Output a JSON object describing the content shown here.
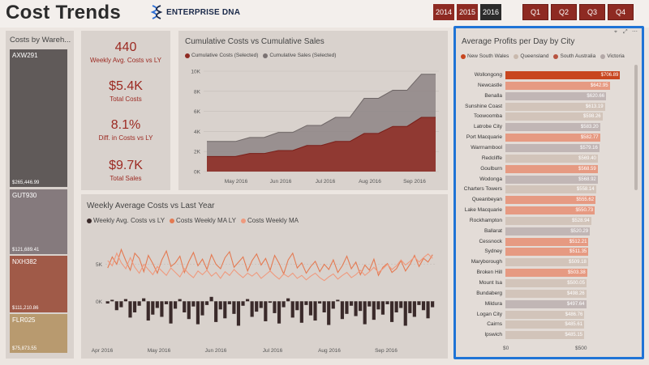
{
  "header": {
    "title": "Cost Trends",
    "logo_text": "ENTERPRISE DNA",
    "years": [
      "2014",
      "2015",
      "2016"
    ],
    "active_year": "2016",
    "quarters": [
      "Q1",
      "Q2",
      "Q3",
      "Q4"
    ]
  },
  "colors": {
    "accent": "#9c2a22",
    "frame": "#1f74d6",
    "nsw": "#c8461f",
    "qld": "#c9b9ad",
    "sa": "#b7533f",
    "vic": "#b3a8a7"
  },
  "treemap": {
    "title": "Costs by Wareh...",
    "items": [
      {
        "name": "AXW291",
        "value": "$265,446.99",
        "color": "#605a59"
      },
      {
        "name": "GUT930",
        "value": "$121,689.41",
        "color": "#857a7d"
      },
      {
        "name": "NXH382",
        "value": "$111,210.86",
        "color": "#a05a48"
      },
      {
        "name": "FLR025",
        "value": "$75,873.55",
        "color": "#b89a6f"
      }
    ]
  },
  "kpis": [
    {
      "value": "440",
      "label": "Weekly Avg. Costs vs LY"
    },
    {
      "value": "$5.4K",
      "label": "Total Costs"
    },
    {
      "value": "8.1%",
      "label": "Diff. in Costs vs LY"
    },
    {
      "value": "$9.7K",
      "label": "Total Sales"
    }
  ],
  "cumulative": {
    "title": "Cumulative Costs vs Cumulative Sales",
    "legend": [
      "Cumulative Costs (Selected)",
      "Cumulative Sales (Selected)"
    ]
  },
  "weekly": {
    "title": "Weekly Average Costs vs Last Year",
    "legend": [
      "Weekly Avg. Costs vs LY",
      "Costs Weekly MA LY",
      "Costs Weekly MA"
    ]
  },
  "city": {
    "title": "Average Profits per Day by City",
    "legend": [
      "New South Wales",
      "Queensland",
      "South Australia",
      "Victoria"
    ],
    "x_ticks": [
      "$0",
      "$500"
    ]
  },
  "chart_data": [
    {
      "type": "area",
      "title": "Cumulative Costs vs Cumulative Sales",
      "x_ticks": [
        "May 2016",
        "Jun 2016",
        "Jul 2016",
        "Aug 2016",
        "Sep 2016"
      ],
      "y_ticks": [
        "0K",
        "2K",
        "4K",
        "6K",
        "8K",
        "10K"
      ],
      "ylim": [
        0,
        10000
      ],
      "series": [
        {
          "name": "Cumulative Costs (Selected)",
          "values": [
            1500,
            1500,
            1500,
            1800,
            1800,
            2100,
            2100,
            2600,
            2600,
            3000,
            3000,
            3800,
            3800,
            4500,
            4500,
            5400,
            5400
          ]
        },
        {
          "name": "Cumulative Sales (Selected)",
          "values": [
            3000,
            3000,
            3000,
            3400,
            3400,
            3900,
            3900,
            4600,
            4600,
            5400,
            5400,
            7300,
            7300,
            8100,
            8100,
            9700,
            9700
          ]
        }
      ]
    },
    {
      "type": "line",
      "title": "Weekly Average Costs vs Last Year",
      "x_ticks": [
        "Apr 2016",
        "May 2016",
        "Jun 2016",
        "Jul 2016",
        "Aug 2016",
        "Sep 2016"
      ],
      "y_ticks": [
        "0K",
        "5K"
      ],
      "ylim": [
        -5000,
        9000
      ],
      "series": [
        {
          "name": "Weekly Avg. Costs vs LY",
          "values": [
            -300,
            200,
            -1200,
            -800,
            300,
            -2200,
            -1500,
            -600,
            400,
            -2600,
            -1800,
            -900,
            -2100,
            -400,
            -3000,
            -1000,
            300,
            -1500,
            -2400,
            -700,
            -3100,
            -1900,
            -500,
            600,
            -2800,
            -1100,
            -2300,
            -400,
            -1700,
            -3300,
            -600,
            300,
            -2100,
            -1400,
            -900,
            -2700,
            -200,
            -1600,
            -3000,
            -800,
            400,
            -2200,
            -1200,
            -2900,
            -500,
            -1900,
            -2600,
            -300,
            -1500,
            -3200,
            -1000,
            200,
            -2400,
            -1700,
            -600,
            -2000,
            -1300,
            -3100,
            -700,
            -2500,
            -1100,
            -1800,
            -400,
            -2800,
            -1500,
            -900,
            -3300,
            -1600,
            -2100,
            -500,
            -1200,
            -2300,
            -800
          ]
        },
        {
          "name": "Costs Weekly MA LY",
          "values": [
            4500,
            6000,
            5000,
            7000,
            5500,
            4200,
            6500,
            5800,
            4000,
            6200,
            5100,
            3800,
            5600,
            6800,
            4700,
            5200,
            6100,
            3900,
            5400,
            6600,
            4800,
            5700,
            4300,
            6300,
            5000,
            4400,
            5900,
            6700,
            4600,
            5300,
            6000,
            4100,
            5500,
            6400,
            4900,
            5800,
            4200,
            6200,
            5100,
            3700,
            5600,
            6500,
            4500,
            5200,
            3800,
            4700,
            5400,
            4000,
            5000,
            4300,
            5600,
            3900,
            4800,
            6100,
            4400,
            5300,
            3600,
            4900,
            4200,
            5700,
            3500,
            4600,
            5100,
            3900,
            4400,
            5500,
            4100,
            5000,
            6200,
            4700,
            5800,
            5300,
            6300
          ]
        },
        {
          "name": "Costs Weekly MA",
          "values": [
            5500,
            4800,
            6500,
            5200,
            4400,
            5900,
            4600,
            3800,
            5000,
            4300,
            3600,
            4700,
            4100,
            3500,
            4500,
            3900,
            3300,
            4400,
            3700,
            3200,
            4100,
            3600,
            4200,
            3400,
            3900,
            3100,
            4000,
            3500,
            4300,
            3700,
            3200,
            3800,
            3400,
            3900,
            3100,
            3600,
            4100,
            3500,
            3000,
            3700,
            3300,
            3800,
            3100,
            3500,
            2900,
            3400,
            3800,
            3200,
            2800,
            3300,
            3700,
            3000,
            3500,
            3900,
            3200,
            3600,
            4200,
            3500,
            4000,
            4600,
            3900,
            4400,
            5000,
            4300,
            4800,
            5600,
            4900,
            5400,
            6000,
            5300,
            5900,
            6400,
            5800
          ]
        }
      ]
    },
    {
      "type": "bar",
      "title": "Average Profits per Day by City",
      "categories": [
        "Wollongong",
        "Newcastle",
        "Benalla",
        "Sunshine Coast",
        "Toowoomba",
        "Latrobe City",
        "Port Macquarie",
        "Warrnambool",
        "Redcliffe",
        "Goulburn",
        "Wodonga",
        "Charters Towers",
        "Queanbeyan",
        "Lake Macquarie",
        "Rockhampton",
        "Ballarat",
        "Cessnock",
        "Sydney",
        "Maryborough",
        "Broken Hill",
        "Mount Isa",
        "Bundaberg",
        "Mildura",
        "Logan City",
        "Cairns",
        "Ipswich"
      ],
      "values": [
        706.89,
        642.95,
        620.66,
        613.19,
        598.26,
        583.2,
        582.77,
        579.16,
        569.4,
        568.59,
        568.92,
        558.14,
        555.62,
        550.73,
        528.94,
        520.29,
        512.21,
        511.35,
        509.18,
        503.38,
        500.05,
        498.26,
        497.64,
        486.76,
        485.61,
        485.15
      ],
      "value_labels": [
        "$706.89",
        "$642.95",
        "$620.66",
        "$613.19",
        "$598.26",
        "$583.20",
        "$582.77",
        "$579.16",
        "$569.40",
        "$568.59",
        "$568.92",
        "$558.14",
        "$555.62",
        "$550.73",
        "$528.94",
        "$520.29",
        "$512.21",
        "$511.35",
        "$509.18",
        "$503.38",
        "$500.05",
        "$498.26",
        "$497.64",
        "$486.76",
        "$485.61",
        "$485.15"
      ],
      "states": [
        "nsw",
        "nsw",
        "vic",
        "qld",
        "qld",
        "vic",
        "nsw",
        "vic",
        "qld",
        "nsw",
        "vic",
        "qld",
        "nsw",
        "nsw",
        "qld",
        "vic",
        "nsw",
        "nsw",
        "qld",
        "nsw",
        "qld",
        "qld",
        "vic",
        "qld",
        "qld",
        "qld"
      ],
      "x_ticks": [
        "$0",
        "$500"
      ],
      "xlim": [
        0,
        800
      ]
    }
  ]
}
